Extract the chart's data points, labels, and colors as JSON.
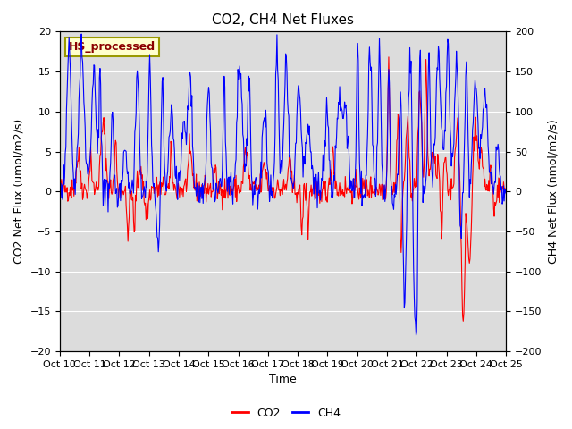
{
  "title": "CO2, CH4 Net Fluxes",
  "xlabel": "Time",
  "ylabel_left": "CO2 Net Flux (umol/m2/s)",
  "ylabel_right": "CH4 Net Flux (nmol/m2/s)",
  "ylim_left": [
    -20,
    20
  ],
  "ylim_right": [
    -200,
    200
  ],
  "yticks_left": [
    -20,
    -15,
    -10,
    -5,
    0,
    5,
    10,
    15,
    20
  ],
  "yticks_right": [
    -200,
    -150,
    -100,
    -50,
    0,
    50,
    100,
    150,
    200
  ],
  "xtick_labels": [
    "Oct 10",
    "Oct 11",
    "Oct 12",
    "Oct 13",
    "Oct 14",
    "Oct 15",
    "Oct 16",
    "Oct 17",
    "Oct 18",
    "Oct 19",
    "Oct 20",
    "Oct 21",
    "Oct 22",
    "Oct 23",
    "Oct 24",
    "Oct 25"
  ],
  "annotation": "HS_processed",
  "annotation_color": "#8B0000",
  "annotation_bg": "#FFFFCC",
  "annotation_border": "#999900",
  "co2_color": "#FF0000",
  "ch4_color": "#0000FF",
  "bg_color": "#DCDCDC",
  "linewidth_co2": 0.8,
  "linewidth_ch4": 0.8,
  "legend_co2": "CO2",
  "legend_ch4": "CH4",
  "title_fontsize": 11,
  "axis_label_fontsize": 9,
  "tick_label_fontsize": 8,
  "grid_color": "#FFFFFF",
  "fig_width": 6.4,
  "fig_height": 4.8,
  "dpi": 100
}
